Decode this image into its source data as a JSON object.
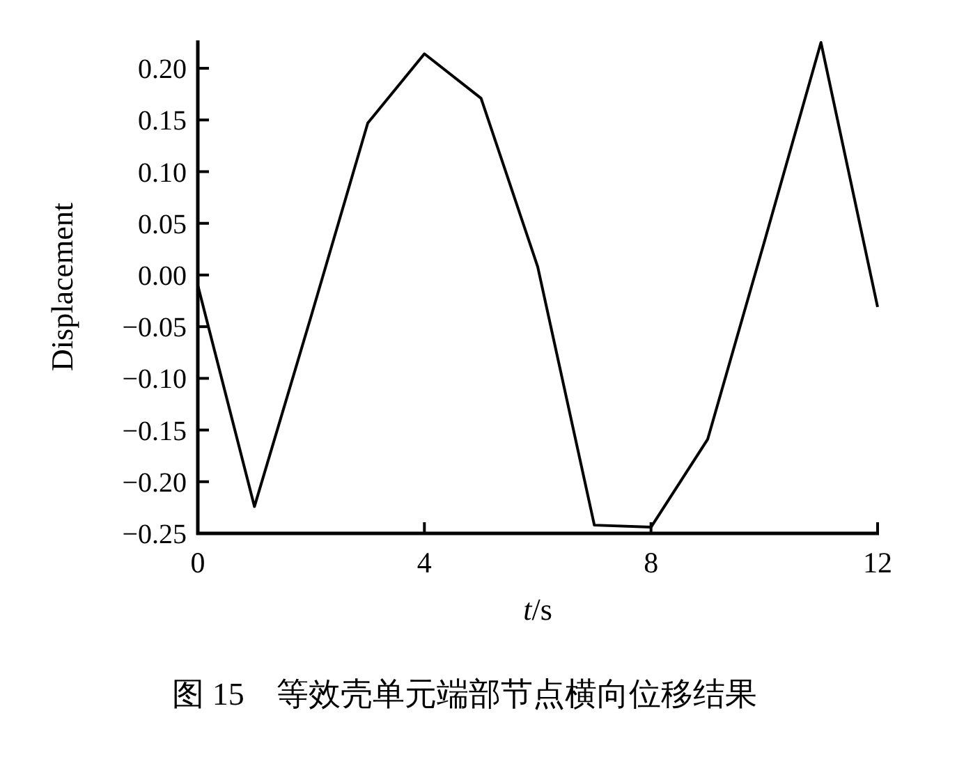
{
  "chart_data": {
    "type": "line",
    "title": "图 15　等效壳单元端部节点横向位移结果",
    "xlabel": "*t*/s",
    "ylabel": "Displacement",
    "x": [
      0,
      1,
      2,
      3,
      4,
      5,
      6,
      7,
      8,
      9,
      10,
      11,
      12
    ],
    "series": [
      {
        "color": "#000000",
        "values": [
          -0.01,
          -0.224,
          -0.04,
          0.147,
          0.214,
          0.171,
          0.008,
          -0.242,
          -0.244,
          -0.159,
          0.032,
          0.225,
          -0.031
        ]
      }
    ],
    "xlim": [
      0,
      12
    ],
    "xticks": [
      0,
      4,
      8,
      12
    ],
    "ylim": [
      -0.25,
      0.227
    ],
    "yticks": [
      {
        "value": 0.2,
        "label": "0.20"
      },
      {
        "value": 0.15,
        "label": "0.15"
      },
      {
        "value": 0.1,
        "label": "0.10"
      },
      {
        "value": 0.05,
        "label": "0.05"
      },
      {
        "value": 0,
        "label": "0.00"
      },
      {
        "value": -0.05,
        "label": "−0.05"
      },
      {
        "value": -0.1,
        "label": "−0.10"
      },
      {
        "value": -0.15,
        "label": "−0.15"
      },
      {
        "value": -0.2,
        "label": "−0.20"
      },
      {
        "value": -0.25,
        "label": "−0.25"
      }
    ],
    "marker": "none",
    "line_style": "solid"
  }
}
